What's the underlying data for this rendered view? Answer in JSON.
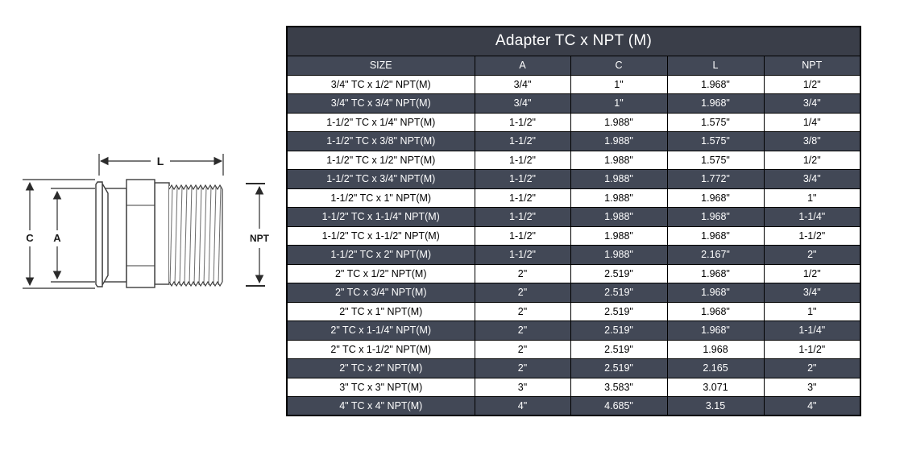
{
  "diagram": {
    "labels": {
      "length": "L",
      "clamp_od": "C",
      "inner_dia": "A",
      "thread": "NPT"
    }
  },
  "table": {
    "title": "Adapter TC x NPT (M)",
    "columns": [
      "SIZE",
      "A",
      "C",
      "L",
      "NPT"
    ],
    "rows": [
      {
        "size": "3/4\" TC x 1/2\" NPT(M)",
        "a": "3/4\"",
        "c": "1\"",
        "l": "1.968\"",
        "npt": "1/2\""
      },
      {
        "size": "3/4\" TC x 3/4\" NPT(M)",
        "a": "3/4\"",
        "c": "1\"",
        "l": "1.968\"",
        "npt": "3/4\""
      },
      {
        "size": "1-1/2\" TC x 1/4\" NPT(M)",
        "a": "1-1/2\"",
        "c": "1.988\"",
        "l": "1.575\"",
        "npt": "1/4\""
      },
      {
        "size": "1-1/2\" TC x 3/8\" NPT(M)",
        "a": "1-1/2\"",
        "c": "1.988\"",
        "l": "1.575\"",
        "npt": "3/8\""
      },
      {
        "size": "1-1/2\" TC x 1/2\" NPT(M)",
        "a": "1-1/2\"",
        "c": "1.988\"",
        "l": "1.575\"",
        "npt": "1/2\""
      },
      {
        "size": "1-1/2\" TC x 3/4\" NPT(M)",
        "a": "1-1/2\"",
        "c": "1.988\"",
        "l": "1.772\"",
        "npt": "3/4\""
      },
      {
        "size": "1-1/2\" TC x 1\" NPT(M)",
        "a": "1-1/2\"",
        "c": "1.988\"",
        "l": "1.968\"",
        "npt": "1\""
      },
      {
        "size": "1-1/2\" TC x 1-1/4\" NPT(M)",
        "a": "1-1/2\"",
        "c": "1.988\"",
        "l": "1.968\"",
        "npt": "1-1/4\""
      },
      {
        "size": "1-1/2\" TC x 1-1/2\" NPT(M)",
        "a": "1-1/2\"",
        "c": "1.988\"",
        "l": "1.968\"",
        "npt": "1-1/2\""
      },
      {
        "size": "1-1/2\" TC x 2\" NPT(M)",
        "a": "1-1/2\"",
        "c": "1.988\"",
        "l": "2.167\"",
        "npt": "2\""
      },
      {
        "size": "2\" TC x 1/2\" NPT(M)",
        "a": "2\"",
        "c": "2.519\"",
        "l": "1.968\"",
        "npt": "1/2\""
      },
      {
        "size": "2\" TC x 3/4\" NPT(M)",
        "a": "2\"",
        "c": "2.519\"",
        "l": "1.968\"",
        "npt": "3/4\""
      },
      {
        "size": "2\" TC x 1\" NPT(M)",
        "a": "2\"",
        "c": "2.519\"",
        "l": "1.968\"",
        "npt": "1\""
      },
      {
        "size": "2\" TC x 1-1/4\" NPT(M)",
        "a": "2\"",
        "c": "2.519\"",
        "l": "1.968\"",
        "npt": "1-1/4\""
      },
      {
        "size": "2\" TC x 1-1/2\" NPT(M)",
        "a": "2\"",
        "c": "2.519\"",
        "l": "1.968",
        "npt": "1-1/2\""
      },
      {
        "size": "2\" TC x 2\" NPT(M)",
        "a": "2\"",
        "c": "2.519\"",
        "l": "2.165",
        "npt": "2\""
      },
      {
        "size": "3\" TC x 3\" NPT(M)",
        "a": "3\"",
        "c": "3.583\"",
        "l": "3.071",
        "npt": "3\""
      },
      {
        "size": "4\" TC x 4\" NPT(M)",
        "a": "4\"",
        "c": "4.685\"",
        "l": "3.15",
        "npt": "4\""
      }
    ]
  },
  "theme": {
    "title_bg": "#3a3e49",
    "dark_bg": "#424856",
    "border": "#000000",
    "text_on_dark": "#ffffff",
    "text_on_light": "#000000",
    "line_color": "#3d3d3d"
  }
}
